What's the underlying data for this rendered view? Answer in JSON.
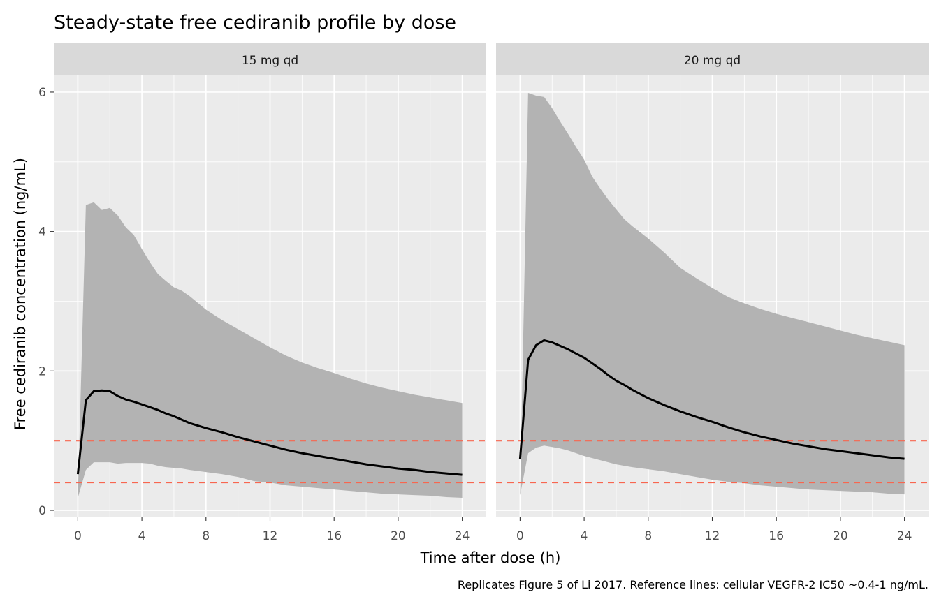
{
  "chart_data": {
    "type": "area",
    "title": "Steady-state free cediranib profile by dose",
    "xlabel": "Time after dose (h)",
    "ylabel": "Free cediranib concentration (ng/mL)",
    "caption": "Replicates Figure 5 of Li 2017. Reference lines: cellular VEGFR-2 IC50 ~0.4-1 ng/mL.",
    "xlim": [
      -1.5,
      25.5
    ],
    "ylim": [
      -0.1,
      6.25
    ],
    "xticks": [
      0,
      4,
      8,
      12,
      16,
      20,
      24
    ],
    "xtick_labels": [
      "0",
      "4",
      "8",
      "12",
      "16",
      "20",
      "24"
    ],
    "yticks": [
      0,
      2,
      4,
      6
    ],
    "ytick_labels": [
      "0",
      "2",
      "4",
      "6"
    ],
    "grid": true,
    "reference_lines": [
      0.4,
      1.0
    ],
    "colors": {
      "panel_background": "#ebebeb",
      "strip_background": "#d9d9d9",
      "grid": "#ffffff",
      "ribbon": "#b3b3b3",
      "median_line": "#000000",
      "reference_line": "#f8664f",
      "axis_text": "#4d4d4d",
      "text": "#1a1a1a"
    },
    "facets": [
      {
        "strip": "15 mg qd",
        "x": [
          0,
          0.5,
          1,
          1.5,
          2,
          2.5,
          3,
          3.5,
          4,
          4.5,
          5,
          5.5,
          6,
          6.5,
          7,
          8,
          9,
          10,
          11,
          12,
          13,
          14,
          15,
          16,
          17,
          18,
          19,
          20,
          21,
          22,
          23,
          24
        ],
        "median": [
          0.52,
          1.58,
          1.71,
          1.72,
          1.71,
          1.64,
          1.59,
          1.56,
          1.52,
          1.48,
          1.44,
          1.39,
          1.35,
          1.3,
          1.25,
          1.18,
          1.12,
          1.05,
          0.99,
          0.93,
          0.87,
          0.82,
          0.78,
          0.74,
          0.7,
          0.66,
          0.63,
          0.6,
          0.58,
          0.55,
          0.53,
          0.51
        ],
        "lower": [
          0.18,
          0.58,
          0.69,
          0.69,
          0.69,
          0.67,
          0.68,
          0.68,
          0.68,
          0.67,
          0.64,
          0.62,
          0.61,
          0.6,
          0.58,
          0.55,
          0.52,
          0.48,
          0.42,
          0.4,
          0.36,
          0.34,
          0.32,
          0.3,
          0.28,
          0.26,
          0.24,
          0.23,
          0.22,
          0.21,
          0.19,
          0.18
        ],
        "upper": [
          0.18,
          4.38,
          4.42,
          4.31,
          4.34,
          4.23,
          4.06,
          3.95,
          3.75,
          3.56,
          3.39,
          3.29,
          3.2,
          3.15,
          3.07,
          2.88,
          2.73,
          2.6,
          2.47,
          2.34,
          2.22,
          2.12,
          2.04,
          1.97,
          1.89,
          1.82,
          1.76,
          1.71,
          1.66,
          1.62,
          1.58,
          1.54
        ]
      },
      {
        "strip": "20 mg qd",
        "x": [
          0,
          0.5,
          1,
          1.5,
          2,
          2.5,
          3,
          3.5,
          4,
          4.5,
          5,
          5.5,
          6,
          6.5,
          7,
          8,
          9,
          10,
          11,
          12,
          13,
          14,
          15,
          16,
          17,
          18,
          19,
          20,
          21,
          22,
          23,
          24
        ],
        "median": [
          0.74,
          2.16,
          2.37,
          2.44,
          2.41,
          2.36,
          2.31,
          2.25,
          2.19,
          2.11,
          2.03,
          1.94,
          1.86,
          1.8,
          1.73,
          1.61,
          1.51,
          1.42,
          1.34,
          1.27,
          1.19,
          1.12,
          1.06,
          1.01,
          0.96,
          0.92,
          0.88,
          0.85,
          0.82,
          0.79,
          0.76,
          0.74
        ],
        "lower": [
          0.22,
          0.82,
          0.9,
          0.93,
          0.91,
          0.89,
          0.86,
          0.82,
          0.78,
          0.75,
          0.72,
          0.69,
          0.66,
          0.64,
          0.62,
          0.59,
          0.56,
          0.52,
          0.48,
          0.44,
          0.41,
          0.39,
          0.36,
          0.34,
          0.32,
          0.3,
          0.29,
          0.28,
          0.27,
          0.26,
          0.24,
          0.23
        ],
        "upper": [
          0.22,
          5.99,
          5.95,
          5.93,
          5.77,
          5.58,
          5.4,
          5.21,
          5.03,
          4.79,
          4.62,
          4.46,
          4.32,
          4.18,
          4.08,
          3.9,
          3.7,
          3.48,
          3.33,
          3.19,
          3.06,
          2.97,
          2.89,
          2.82,
          2.76,
          2.7,
          2.64,
          2.58,
          2.52,
          2.47,
          2.42,
          2.37
        ]
      }
    ]
  }
}
